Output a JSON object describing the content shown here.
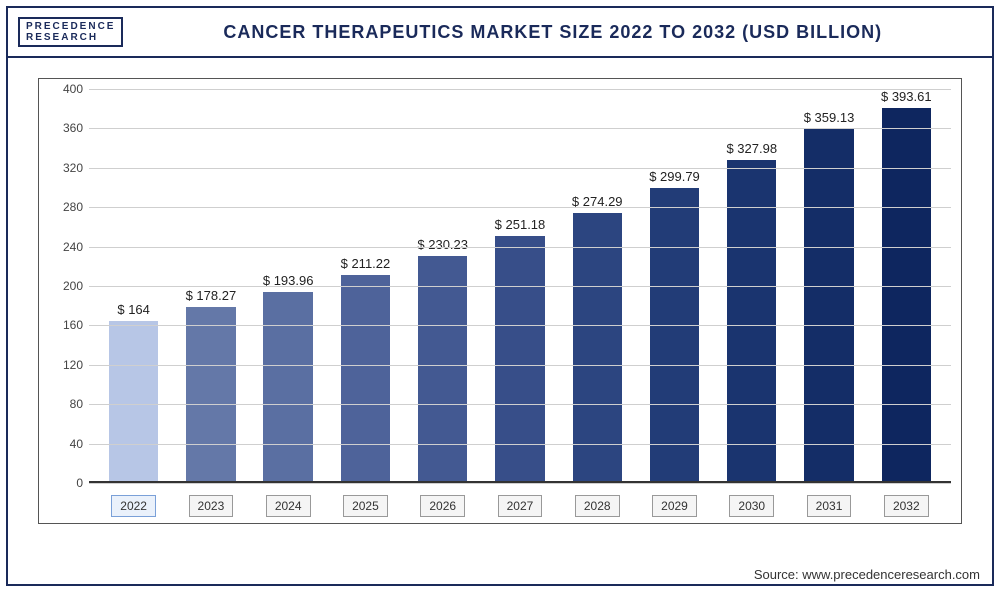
{
  "logo": {
    "line1": "PRECEDENCE",
    "line2": "RESEARCH"
  },
  "title": "CANCER THERAPEUTICS MARKET SIZE 2022 TO 2032 (USD BILLION)",
  "source": "Source: www.precedenceresearch.com",
  "chart": {
    "type": "bar",
    "ylim": [
      0,
      400
    ],
    "ytick_step": 40,
    "yticks": [
      0,
      40,
      80,
      120,
      160,
      200,
      240,
      280,
      320,
      360,
      400
    ],
    "grid_color": "#cfcfcf",
    "axis_color": "#333333",
    "background_color": "#ffffff",
    "bar_width_pct": 64,
    "value_prefix": "$ ",
    "label_fontsize": 12,
    "value_fontsize": 13,
    "categories": [
      "2022",
      "2023",
      "2024",
      "2025",
      "2026",
      "2027",
      "2028",
      "2029",
      "2030",
      "2031",
      "2032"
    ],
    "values": [
      164,
      178.27,
      193.96,
      211.22,
      230.23,
      251.18,
      274.29,
      299.79,
      327.98,
      359.13,
      393.61
    ],
    "display_values": [
      "$ 164",
      "$ 178.27",
      "$ 193.96",
      "$ 211.22",
      "$ 230.23",
      "$ 251.18",
      "$ 274.29",
      "$ 299.79",
      "$ 327.98",
      "$ 359.13",
      "$ 393.61"
    ],
    "bar_colors": [
      "#b7c6e6",
      "#6478a8",
      "#5a6fa2",
      "#4e639a",
      "#435992",
      "#374e89",
      "#2c4580",
      "#223c77",
      "#1a346f",
      "#142d67",
      "#0e265f"
    ],
    "highlight_index": 0
  }
}
